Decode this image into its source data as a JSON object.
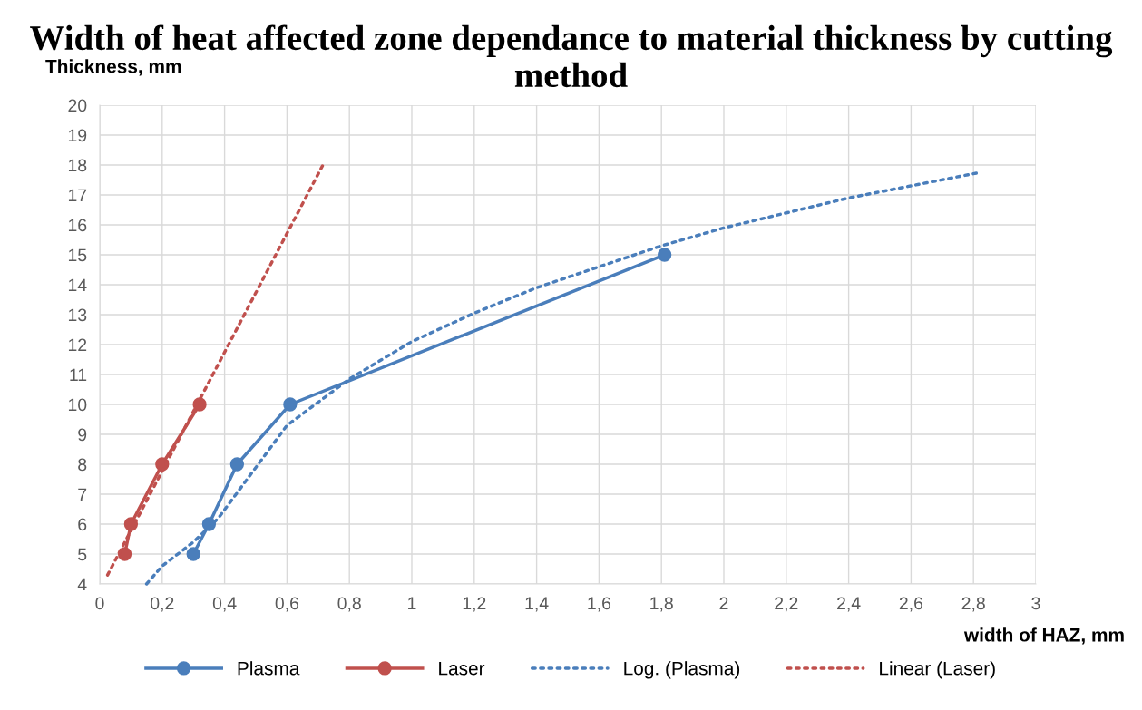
{
  "chart_data": {
    "type": "line",
    "title": "Width of heat affected zone dependance to material thickness by cutting method",
    "xlabel": "width of HAZ, mm",
    "ylabel": "Thickness, mm",
    "xlim": [
      0,
      3
    ],
    "ylim": [
      4,
      20
    ],
    "xticks": [
      0,
      {
        "value": 0.2,
        "label": "0,2"
      },
      {
        "value": 0.4,
        "label": "0,4"
      },
      {
        "value": 0.6,
        "label": "0,6"
      },
      {
        "value": 0.8,
        "label": "0,8"
      },
      1,
      {
        "value": 1.2,
        "label": "1,2"
      },
      {
        "value": 1.4,
        "label": "1,4"
      },
      {
        "value": 1.6,
        "label": "1,6"
      },
      {
        "value": 1.8,
        "label": "1,8"
      },
      2,
      {
        "value": 2.2,
        "label": "2,2"
      },
      {
        "value": 2.4,
        "label": "2,4"
      },
      {
        "value": 2.6,
        "label": "2,6"
      },
      {
        "value": 2.8,
        "label": "2,8"
      },
      3
    ],
    "yticks": [
      4,
      5,
      6,
      7,
      8,
      9,
      10,
      11,
      12,
      13,
      14,
      15,
      16,
      17,
      18,
      19,
      20
    ],
    "grid": true,
    "legend": "bottom",
    "series": [
      {
        "name": "Plasma",
        "color": "#4a7ebb",
        "marker": "circle",
        "line_style": "solid",
        "x": [
          0.3,
          0.35,
          0.44,
          0.61,
          1.81
        ],
        "values": [
          5,
          6,
          8,
          10,
          15
        ]
      },
      {
        "name": "Laser",
        "color": "#c0504d",
        "marker": "circle",
        "line_style": "solid",
        "x": [
          0.08,
          0.1,
          0.2,
          0.32
        ],
        "values": [
          5,
          6,
          8,
          10
        ]
      },
      {
        "name": "Log. (Plasma)",
        "color": "#4a7ebb",
        "marker": "none",
        "line_style": "dotted",
        "x": [
          0.15,
          0.2,
          0.3,
          0.38,
          0.6,
          0.8,
          1.0,
          1.2,
          1.4,
          1.8,
          2.0,
          2.4,
          2.82
        ],
        "values": [
          4,
          4.6,
          5.4,
          6.2,
          9.3,
          10.85,
          12.1,
          13.05,
          13.9,
          15.3,
          15.9,
          16.9,
          17.75
        ]
      },
      {
        "name": "Linear (Laser)",
        "color": "#c0504d",
        "marker": "none",
        "line_style": "dotted",
        "x": [
          0.025,
          0.715
        ],
        "values": [
          4.3,
          18
        ]
      }
    ]
  }
}
